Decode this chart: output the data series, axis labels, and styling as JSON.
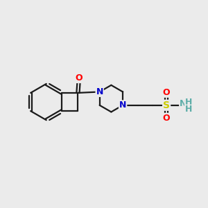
{
  "background_color": "#ebebeb",
  "bond_color": "#1a1a1a",
  "oxygen_color": "#ff0000",
  "nitrogen_color": "#0000cc",
  "sulfur_color": "#cccc00",
  "nh_color": "#5dada8",
  "bond_width": 1.6,
  "fig_width": 3.0,
  "fig_height": 3.0,
  "xlim": [
    0,
    10
  ],
  "ylim": [
    0,
    10
  ]
}
